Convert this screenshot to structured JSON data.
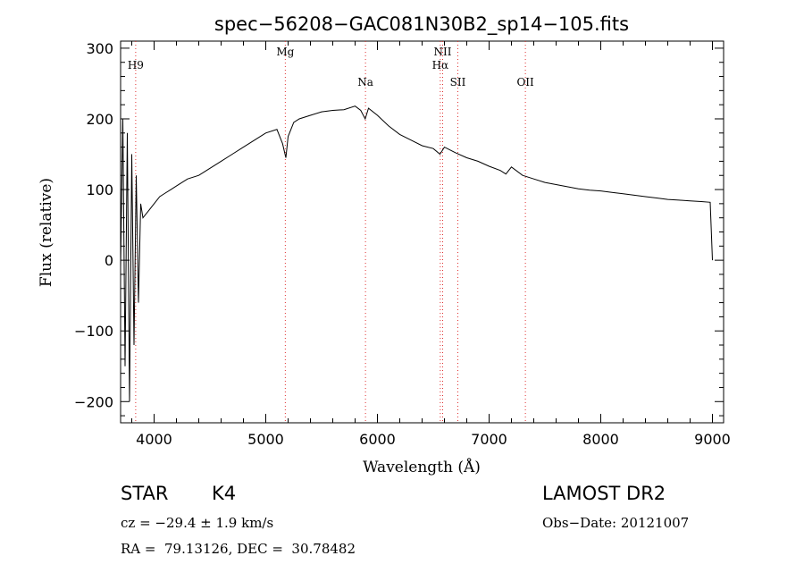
{
  "chart_data": {
    "type": "line",
    "title": "spec−56208−GAC081N30B2_sp14−105.fits",
    "xlabel": "Wavelength (Å)",
    "ylabel": "Flux (relative)",
    "xlim": [
      3700,
      9100
    ],
    "ylim": [
      -230,
      310
    ],
    "xticks": [
      4000,
      5000,
      6000,
      7000,
      8000,
      9000
    ],
    "xtick_labels": [
      "4000",
      "5000",
      "6000",
      "7000",
      "8000",
      "9000"
    ],
    "yticks": [
      -200,
      -100,
      0,
      100,
      200,
      300
    ],
    "ytick_labels": [
      "−200",
      "−100",
      "0",
      "100",
      "200",
      "300"
    ],
    "grid": false,
    "series": [
      {
        "name": "flux",
        "x": [
          3700,
          3720,
          3740,
          3760,
          3780,
          3800,
          3820,
          3840,
          3860,
          3880,
          3900,
          3950,
          4000,
          4050,
          4100,
          4150,
          4200,
          4250,
          4300,
          4400,
          4500,
          4600,
          4700,
          4800,
          4900,
          5000,
          5100,
          5150,
          5180,
          5200,
          5250,
          5300,
          5400,
          5500,
          5600,
          5700,
          5800,
          5850,
          5890,
          5920,
          6000,
          6100,
          6200,
          6300,
          6400,
          6500,
          6560,
          6600,
          6700,
          6800,
          6900,
          7000,
          7100,
          7150,
          7200,
          7300,
          7400,
          7500,
          7600,
          7700,
          7800,
          7900,
          8000,
          8100,
          8200,
          8300,
          8400,
          8500,
          8600,
          8700,
          8800,
          8900,
          8980,
          9000
        ],
        "y": [
          -10,
          200,
          -150,
          180,
          -200,
          150,
          -120,
          120,
          -60,
          80,
          60,
          70,
          80,
          90,
          95,
          100,
          105,
          110,
          115,
          120,
          130,
          140,
          150,
          160,
          170,
          180,
          185,
          165,
          145,
          175,
          195,
          200,
          205,
          210,
          212,
          213,
          218,
          212,
          200,
          215,
          205,
          190,
          178,
          170,
          162,
          158,
          150,
          160,
          152,
          145,
          140,
          133,
          127,
          122,
          132,
          120,
          115,
          110,
          107,
          104,
          101,
          99,
          98,
          96,
          94,
          92,
          90,
          88,
          86,
          85,
          84,
          83,
          82,
          0
        ]
      }
    ],
    "lines": [
      {
        "label": "H9",
        "x": 3835
      },
      {
        "label": "Mg",
        "x": 5175
      },
      {
        "label": "Na",
        "x": 5893
      },
      {
        "label": "NII",
        "x": 6584
      },
      {
        "label": "Hα",
        "x": 6563
      },
      {
        "label": "SII",
        "x": 6720
      },
      {
        "label": "OII",
        "x": 7325
      }
    ]
  },
  "info": {
    "object_class": "STAR",
    "subclass": "K4",
    "survey": "LAMOST DR2",
    "redshift": "cz = −29.4 ± 1.9 km/s",
    "obs_date": "Obs−Date: 20121007",
    "coords": "RA =  79.13126, DEC =  30.78482"
  }
}
